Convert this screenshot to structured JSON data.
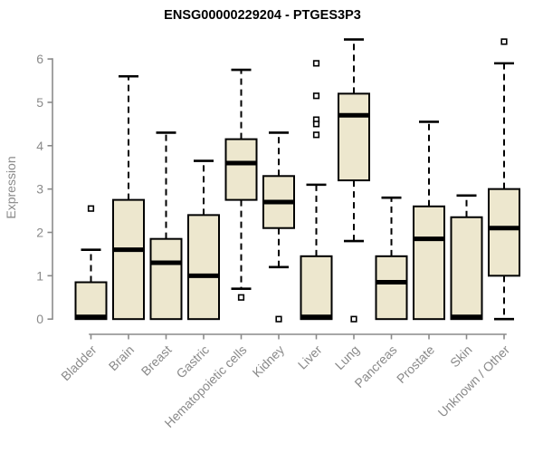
{
  "chart_data": {
    "type": "boxplot",
    "title": "ENSG00000229204 - PTGES3P3",
    "ylabel": "Expression",
    "xlabel": "",
    "ylim": [
      0,
      6.6
    ],
    "yticks": [
      0,
      1,
      2,
      3,
      4,
      5,
      6
    ],
    "grid": false,
    "legend": "none",
    "categories": [
      "Bladder",
      "Brain",
      "Breast",
      "Gastric",
      "Hematopoietic cells",
      "Kidney",
      "Liver",
      "Lung",
      "Pancreas",
      "Prostate",
      "Skin",
      "Unknown / Other"
    ],
    "series": [
      {
        "category": "Bladder",
        "whisker_low": 0,
        "q1": 0,
        "median": 0.05,
        "q3": 0.85,
        "whisker_high": 1.6,
        "outliers": [
          2.55
        ]
      },
      {
        "category": "Brain",
        "whisker_low": 0,
        "q1": 0,
        "median": 1.6,
        "q3": 2.75,
        "whisker_high": 5.6,
        "outliers": []
      },
      {
        "category": "Breast",
        "whisker_low": 0,
        "q1": 0,
        "median": 1.3,
        "q3": 1.85,
        "whisker_high": 4.3,
        "outliers": []
      },
      {
        "category": "Gastric",
        "whisker_low": 0,
        "q1": 0,
        "median": 1.0,
        "q3": 2.4,
        "whisker_high": 3.65,
        "outliers": []
      },
      {
        "category": "Hematopoietic cells",
        "whisker_low": 0.7,
        "q1": 2.75,
        "median": 3.6,
        "q3": 4.15,
        "whisker_high": 5.75,
        "outliers": [
          0.5
        ]
      },
      {
        "category": "Kidney",
        "whisker_low": 1.2,
        "q1": 2.1,
        "median": 2.7,
        "q3": 3.3,
        "whisker_high": 4.3,
        "outliers": [
          0
        ]
      },
      {
        "category": "Liver",
        "whisker_low": 0,
        "q1": 0,
        "median": 0.05,
        "q3": 1.45,
        "whisker_high": 3.1,
        "outliers": [
          5.9,
          5.15,
          4.6,
          4.5,
          4.25
        ]
      },
      {
        "category": "Lung",
        "whisker_low": 1.8,
        "q1": 3.2,
        "median": 4.7,
        "q3": 5.2,
        "whisker_high": 6.45,
        "outliers": [
          0
        ]
      },
      {
        "category": "Pancreas",
        "whisker_low": 0,
        "q1": 0,
        "median": 0.85,
        "q3": 1.45,
        "whisker_high": 2.8,
        "outliers": []
      },
      {
        "category": "Prostate",
        "whisker_low": 0,
        "q1": 0,
        "median": 1.85,
        "q3": 2.6,
        "whisker_high": 4.55,
        "outliers": []
      },
      {
        "category": "Skin",
        "whisker_low": 0,
        "q1": 0,
        "median": 0.05,
        "q3": 2.35,
        "whisker_high": 2.85,
        "outliers": []
      },
      {
        "category": "Unknown / Other",
        "whisker_low": 0,
        "q1": 1.0,
        "median": 2.1,
        "q3": 3.0,
        "whisker_high": 5.9,
        "outliers": [
          6.4
        ]
      }
    ]
  },
  "colors": {
    "background": "#FFFFFF",
    "box_fill": "#EDE7CE",
    "box_stroke": "#000000",
    "median": "#000000",
    "axis": "#8A8A8A",
    "tick_label": "#8A8A8A",
    "title": "#000000"
  }
}
